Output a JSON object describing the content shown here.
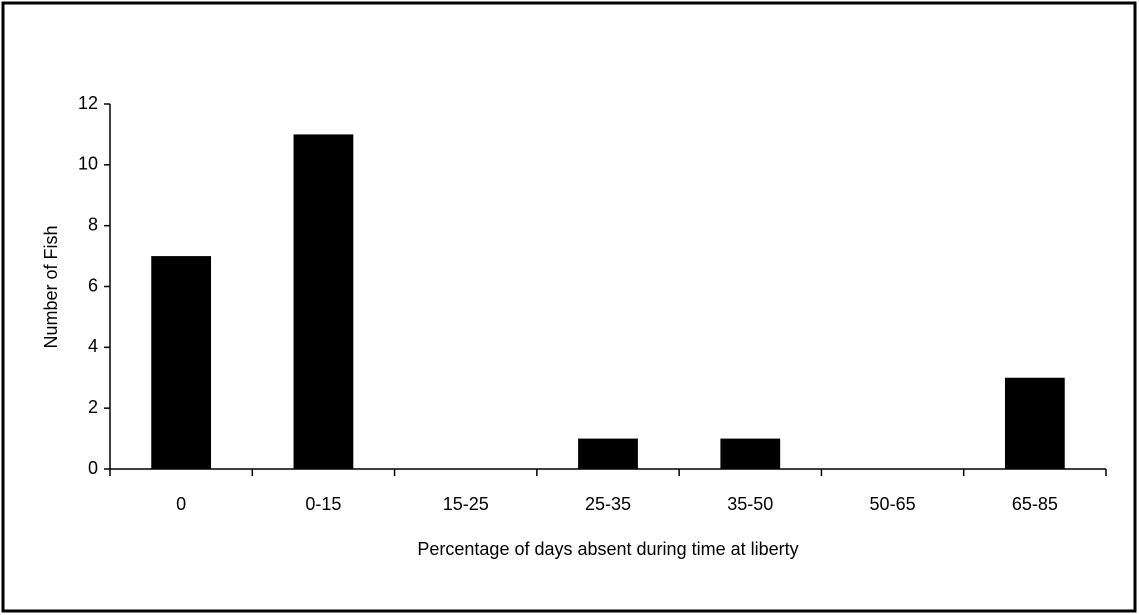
{
  "chart_data": {
    "type": "bar",
    "x_label": "Percentage of days absent during time at liberty",
    "y_label": "Number of Fish",
    "categories": [
      "0",
      "0-15",
      "15-25",
      "25-35",
      "35-50",
      "50-65",
      "65-85"
    ],
    "values": [
      7,
      11,
      0,
      1,
      1,
      0,
      3
    ],
    "color": "#000000",
    "ylim": [
      0,
      12
    ],
    "yticks": [
      0,
      2,
      4,
      6,
      8,
      10,
      12
    ],
    "grid": false
  }
}
